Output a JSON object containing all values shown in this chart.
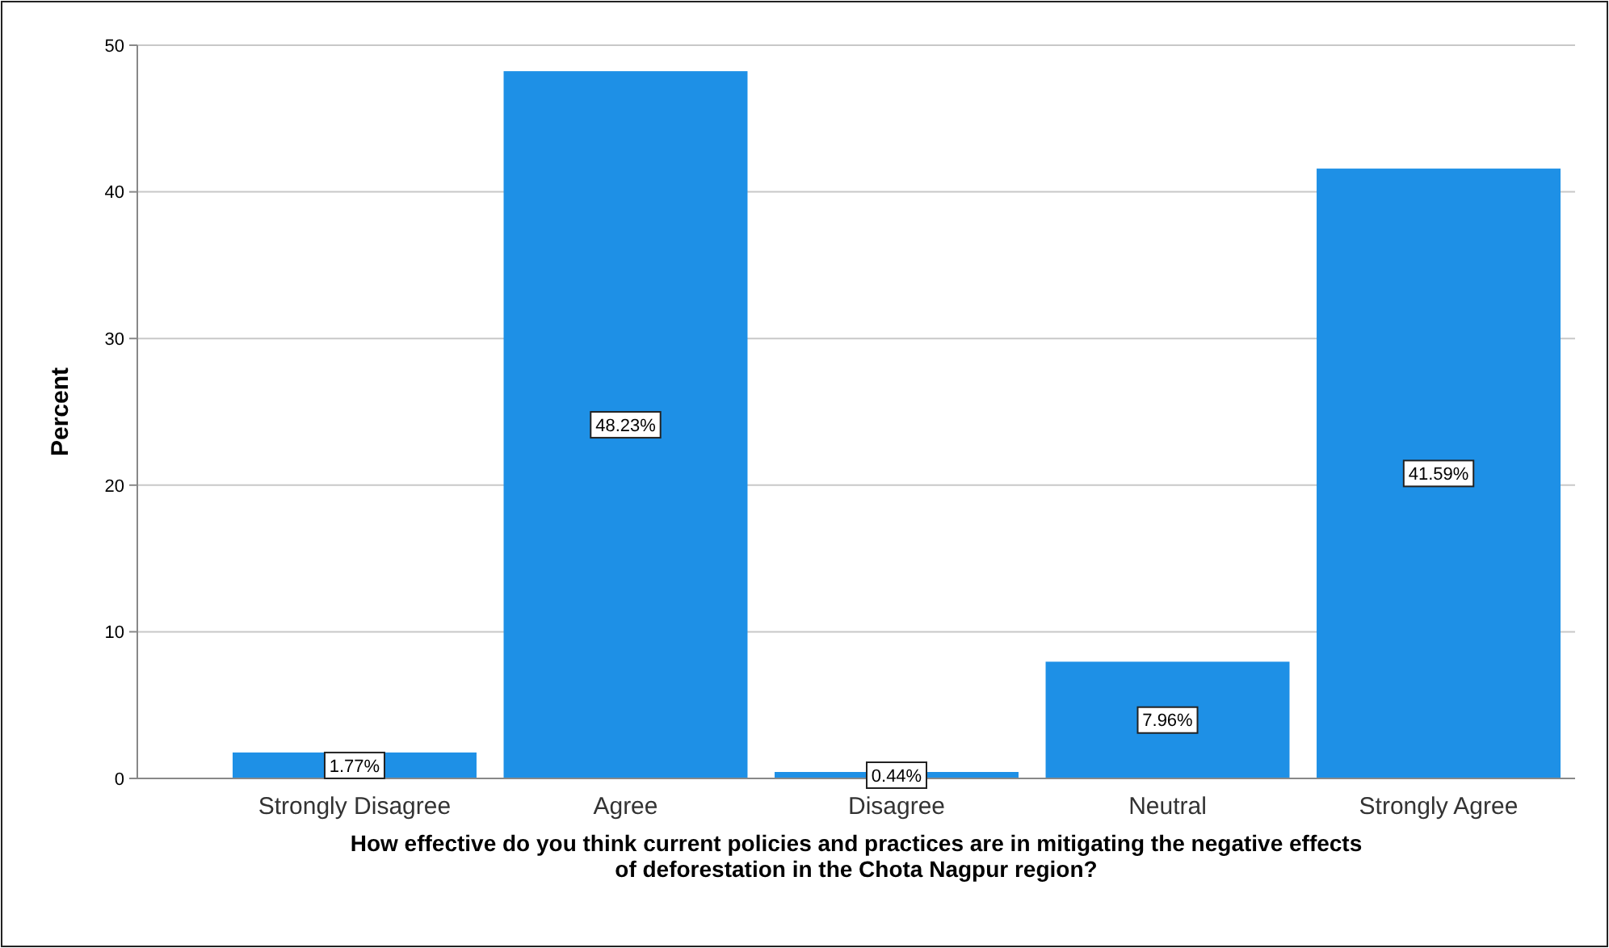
{
  "chart_data": {
    "type": "bar",
    "xlabel": "How effective do you think current policies and practices are in mitigating the negative effects of deforestation in the Chota Nagpur region?",
    "ylabel": "Percent",
    "categories": [
      "Strongly Disagree",
      "Agree",
      "Disagree",
      "Neutral",
      "Strongly Agree"
    ],
    "values": [
      1.77,
      48.23,
      0.44,
      7.96,
      41.59
    ],
    "value_labels": [
      "1.77%",
      "48.23%",
      "0.44%",
      "7.96%",
      "41.59%"
    ],
    "color": "#1e90e6",
    "ylim": [
      0,
      50
    ],
    "yticks": [
      0,
      10,
      20,
      30,
      40,
      50
    ],
    "grid": "y"
  }
}
